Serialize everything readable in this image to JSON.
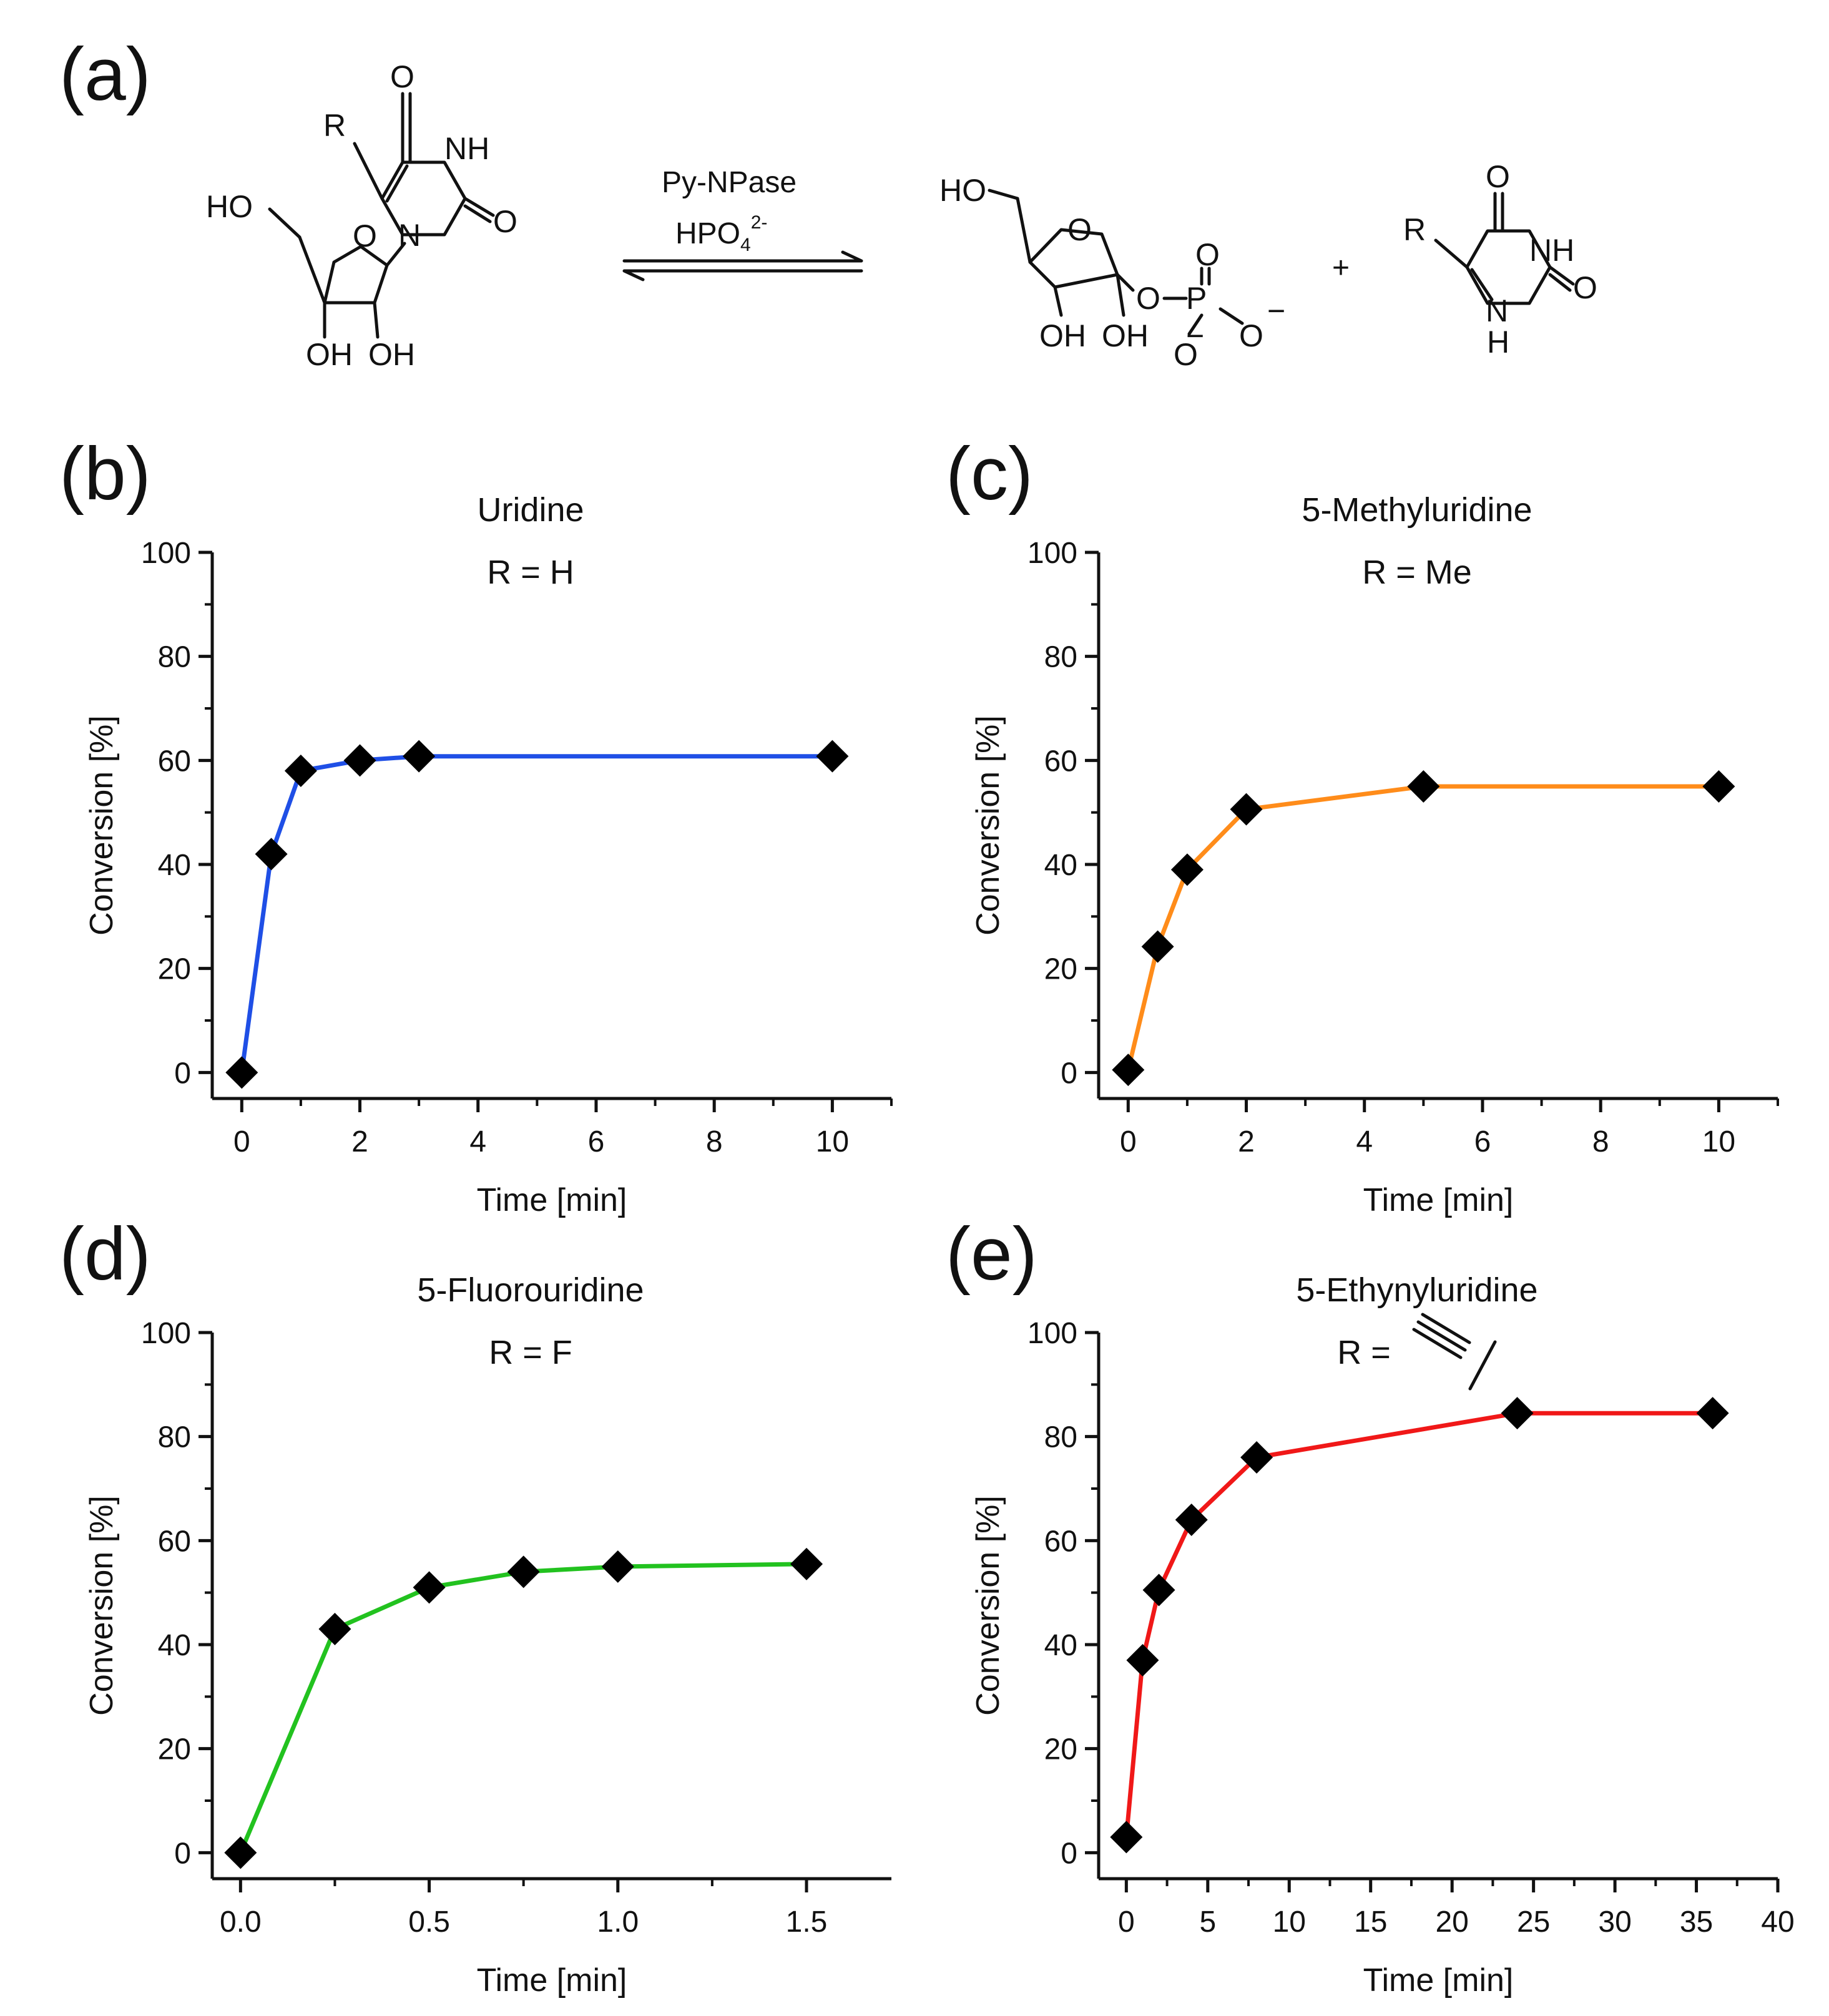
{
  "panel_labels": [
    "(a)",
    "(b)",
    "(c)",
    "(d)",
    "(e)"
  ],
  "scheme": {
    "enzyme": "Py-NPase",
    "cosubstrate": "HPO",
    "cosubstrate_sub": "4",
    "cosubstrate_sup": "2-",
    "plus": "+",
    "atoms": {
      "R": "R",
      "O": "O",
      "NH": "NH",
      "N": "N",
      "H": "H",
      "HO": "HO",
      "OH": "OH",
      "P": "P",
      "minus": "−"
    }
  },
  "chart_data": [
    {
      "type": "line",
      "panel": "(b)",
      "title": "Uridine",
      "subtitle": "R = H",
      "xlabel": "Time [min]",
      "ylabel": "Conversion [%]",
      "xlim": [
        -0.5,
        11
      ],
      "ylim": [
        -5,
        100
      ],
      "xticks": [
        "0",
        "2",
        "4",
        "6",
        "8",
        "10"
      ],
      "xtick_values": [
        0,
        2,
        4,
        6,
        8,
        10
      ],
      "yticks": [
        "0",
        "20",
        "40",
        "60",
        "80",
        "100"
      ],
      "ytick_values": [
        0,
        20,
        40,
        60,
        80,
        100
      ],
      "line_color": "#1f4fe6",
      "marker": "diamond",
      "x": [
        0,
        0.5,
        1,
        2,
        3,
        10
      ],
      "y": [
        0,
        42,
        58,
        60,
        60.8,
        60.8
      ]
    },
    {
      "type": "line",
      "panel": "(c)",
      "title": "5-Methyluridine",
      "subtitle": "R = Me",
      "xlabel": "Time [min]",
      "ylabel": "Conversion [%]",
      "xlim": [
        -0.5,
        11
      ],
      "ylim": [
        -5,
        100
      ],
      "xticks": [
        "0",
        "2",
        "4",
        "6",
        "8",
        "10"
      ],
      "xtick_values": [
        0,
        2,
        4,
        6,
        8,
        10
      ],
      "yticks": [
        "0",
        "20",
        "40",
        "60",
        "80",
        "100"
      ],
      "ytick_values": [
        0,
        20,
        40,
        60,
        80,
        100
      ],
      "line_color": "#ff8c1a",
      "marker": "diamond",
      "x": [
        0,
        0.5,
        1,
        2,
        5,
        10
      ],
      "y": [
        0.5,
        24.2,
        39,
        50.6,
        55,
        55
      ]
    },
    {
      "type": "line",
      "panel": "(d)",
      "title": "5-Fluorouridine",
      "subtitle": "R = F",
      "xlabel": "Time [min]",
      "ylabel": "Conversion [%]",
      "xlim": [
        -0.075,
        1.725
      ],
      "ylim": [
        -5,
        100
      ],
      "xticks": [
        "0.0",
        "0.5",
        "1.0",
        "1.5"
      ],
      "xtick_values": [
        0,
        0.5,
        1,
        1.5
      ],
      "yticks": [
        "0",
        "20",
        "40",
        "60",
        "80",
        "100"
      ],
      "ytick_values": [
        0,
        20,
        40,
        60,
        80,
        100
      ],
      "line_color": "#22c21f",
      "marker": "diamond",
      "x": [
        0,
        0.25,
        0.5,
        0.75,
        1,
        1.5
      ],
      "y": [
        0,
        43,
        51,
        54,
        55,
        55.5
      ]
    },
    {
      "type": "line",
      "panel": "(e)",
      "title": "5-Ethynyluridine",
      "subtitle": "R =",
      "xlabel": "Time [min]",
      "ylabel": "Conversion [%]",
      "xlim": [
        -1.7,
        40
      ],
      "ylim": [
        -5,
        100
      ],
      "xticks": [
        "0",
        "5",
        "10",
        "15",
        "20",
        "25",
        "30",
        "35",
        "40"
      ],
      "xtick_values": [
        0,
        5,
        10,
        15,
        20,
        25,
        30,
        35,
        40
      ],
      "yticks": [
        "0",
        "20",
        "40",
        "60",
        "80",
        "100"
      ],
      "ytick_values": [
        0,
        20,
        40,
        60,
        80,
        100
      ],
      "line_color": "#f01818",
      "marker": "diamond",
      "x": [
        0,
        1,
        2,
        4,
        8,
        24,
        36
      ],
      "y": [
        3,
        37,
        50.5,
        64,
        76,
        84.5,
        84.5
      ]
    }
  ]
}
